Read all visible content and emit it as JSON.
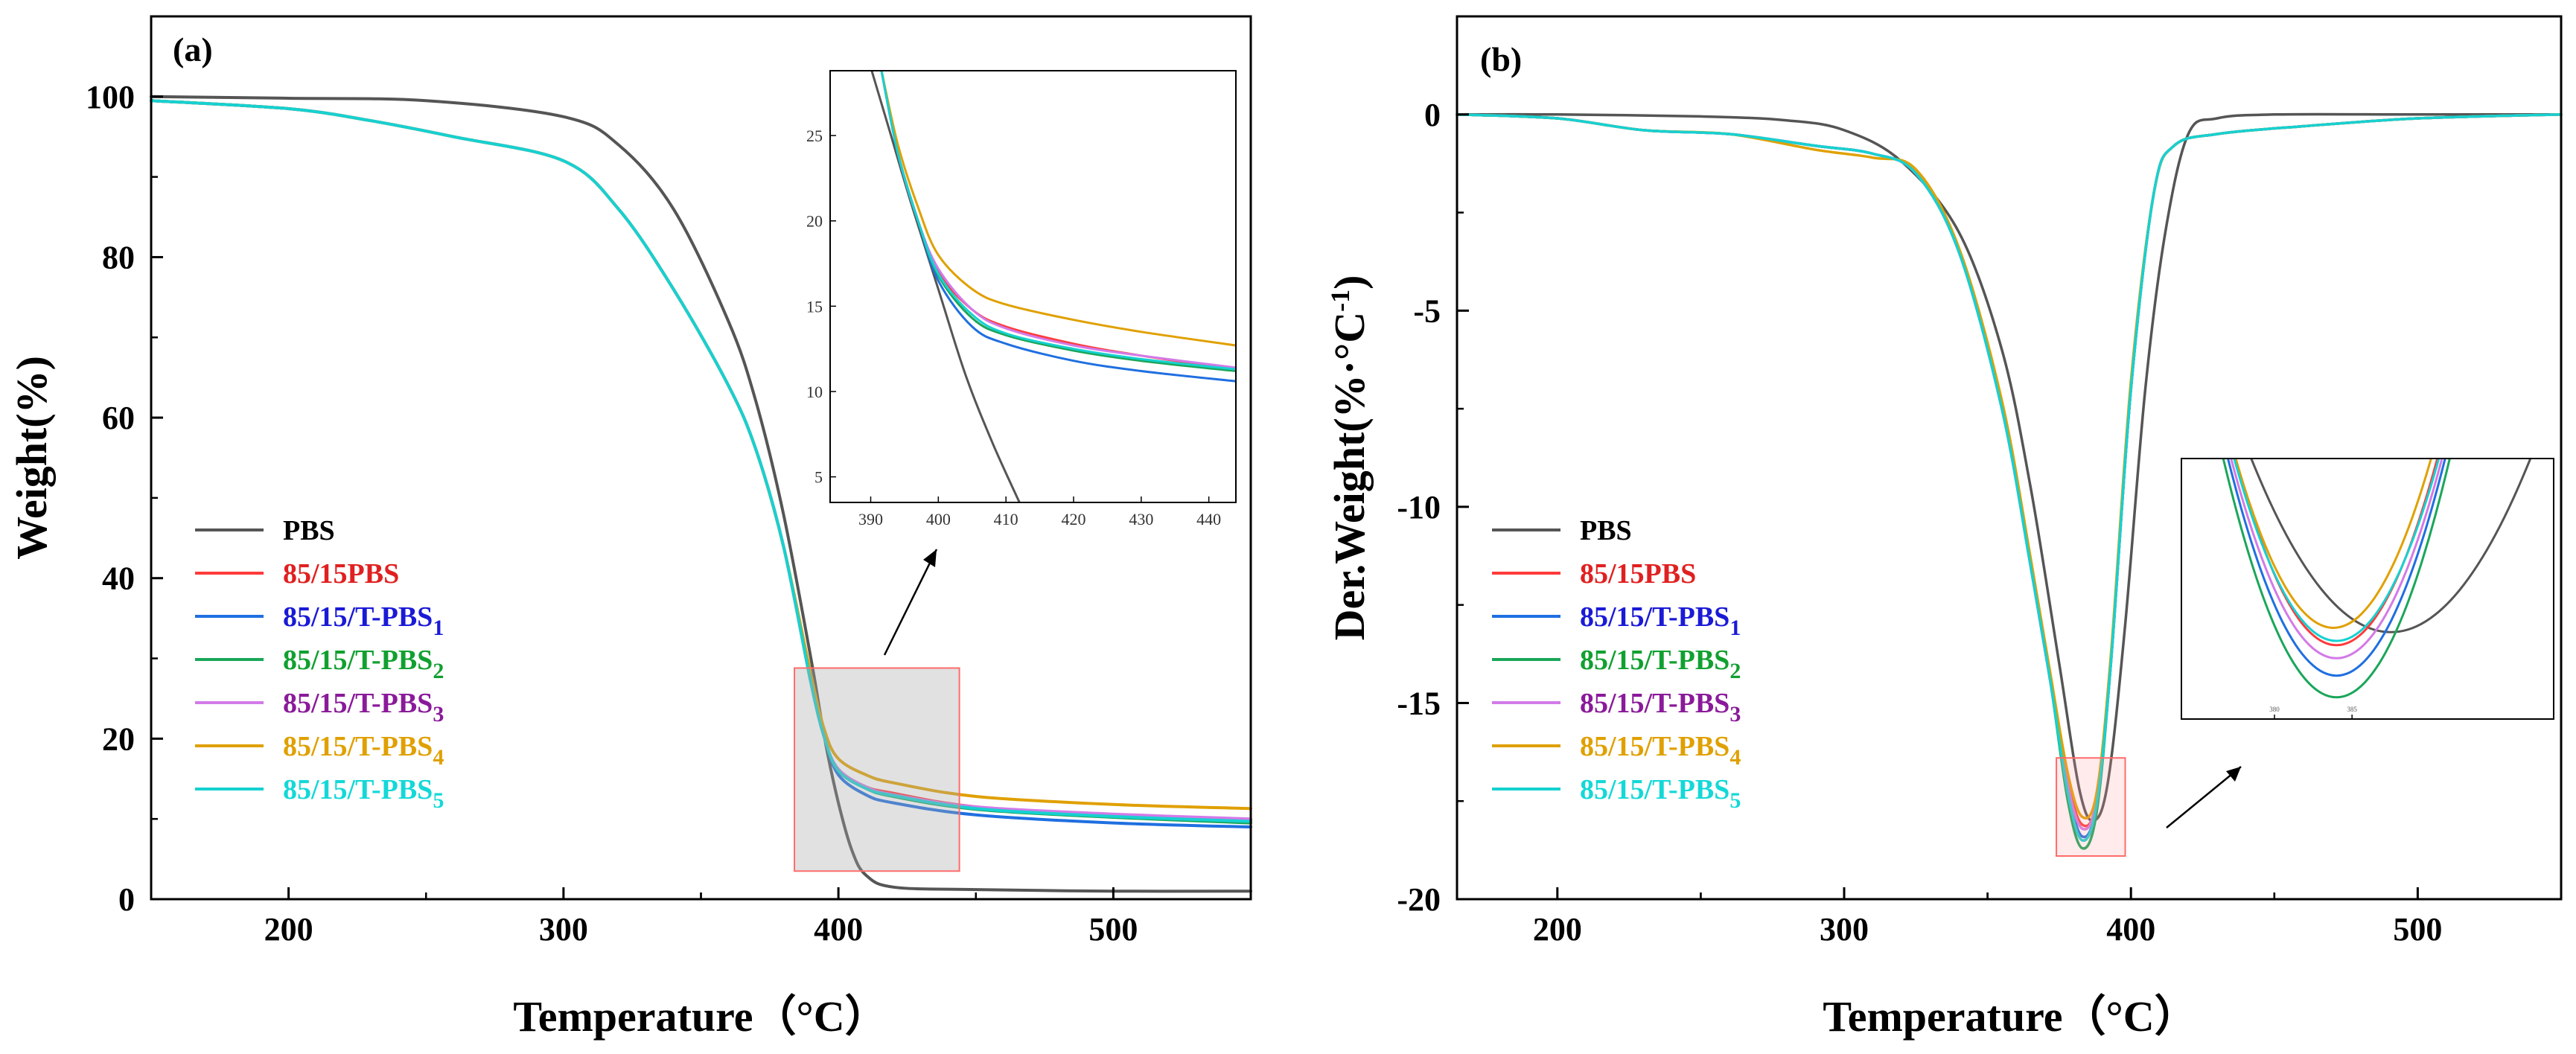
{
  "chart_data": [
    {
      "type": "line",
      "panel": "(a)",
      "xlabel": "Temperature（°C）",
      "ylabel": "Weight(%)",
      "xlim": [
        150,
        550
      ],
      "ylim": [
        0,
        110
      ],
      "x_ticks": [
        "200",
        "300",
        "400",
        "500"
      ],
      "y_ticks": [
        "0",
        "20",
        "40",
        "60",
        "80",
        "100"
      ],
      "grid": false,
      "legend_position": "lower-left",
      "legend": [
        "PBS",
        "85/15PBS",
        "85/15/T-PBS",
        "85/15/T-PBS",
        "85/15/T-PBS",
        "85/15/T-PBS",
        "85/15/T-PBS"
      ],
      "legend_subscripts": [
        "",
        "",
        "1",
        "2",
        "3",
        "4",
        "5"
      ],
      "legend_colors": [
        "#555555",
        "#ff3b3b",
        "#1f6fe0",
        "#1aa65a",
        "#d37ae8",
        "#e0a000",
        "#16d1d1"
      ],
      "legend_text_colors": [
        "#000000",
        "#e02020",
        "#1a1ad6",
        "#11a030",
        "#8a1a9a",
        "#e0a000",
        "#14d8d8"
      ],
      "series": [
        {
          "name": "PBS",
          "x": [
            150,
            200,
            250,
            300,
            320,
            340,
            360,
            370,
            380,
            390,
            395,
            400,
            405,
            410,
            420,
            450,
            500,
            550
          ],
          "y": [
            100,
            99.8,
            99.5,
            97.5,
            94,
            86,
            72,
            62,
            48,
            30,
            20,
            12,
            6,
            3,
            1.5,
            1.2,
            1,
            1
          ]
        },
        {
          "name": "85/15PBS",
          "x": [
            150,
            200,
            230,
            260,
            300,
            320,
            340,
            360,
            370,
            380,
            390,
            395,
            400,
            410,
            420,
            450,
            500,
            550
          ],
          "y": [
            99.5,
            98.5,
            97,
            95,
            92,
            86,
            76,
            64,
            56,
            44,
            27,
            20,
            16,
            14,
            13.2,
            11.5,
            10.5,
            9.8
          ]
        },
        {
          "name": "85/15/T-PBS1",
          "x": [
            150,
            200,
            230,
            260,
            300,
            320,
            340,
            360,
            370,
            380,
            390,
            395,
            400,
            410,
            420,
            450,
            500,
            550
          ],
          "y": [
            99.5,
            98.5,
            97,
            95,
            92,
            86,
            76,
            64,
            56,
            44,
            27,
            20,
            15.5,
            13,
            12,
            10.5,
            9.5,
            9
          ]
        },
        {
          "name": "85/15/T-PBS2",
          "x": [
            150,
            200,
            230,
            260,
            300,
            320,
            340,
            360,
            370,
            380,
            390,
            395,
            400,
            410,
            420,
            450,
            500,
            550
          ],
          "y": [
            99.5,
            98.5,
            97,
            95,
            92,
            86,
            76,
            64,
            56,
            44,
            27,
            20,
            16,
            13.8,
            12.8,
            11.2,
            10.2,
            9.5
          ]
        },
        {
          "name": "85/15/T-PBS3",
          "x": [
            150,
            200,
            230,
            260,
            300,
            320,
            340,
            360,
            370,
            380,
            390,
            395,
            400,
            410,
            420,
            450,
            500,
            550
          ],
          "y": [
            99.5,
            98.5,
            97,
            95,
            92,
            86,
            76,
            64,
            56,
            44,
            27,
            20,
            16.2,
            14,
            13,
            11.5,
            10.6,
            10
          ]
        },
        {
          "name": "85/15/T-PBS4",
          "x": [
            150,
            200,
            230,
            260,
            300,
            320,
            340,
            360,
            370,
            380,
            390,
            395,
            400,
            410,
            420,
            450,
            500,
            550
          ],
          "y": [
            99.5,
            98.5,
            97,
            95,
            92,
            86,
            76,
            64,
            56,
            44,
            28,
            21,
            17.5,
            15.5,
            14.5,
            12.8,
            11.8,
            11.3
          ]
        },
        {
          "name": "85/15/T-PBS5",
          "x": [
            150,
            200,
            230,
            260,
            300,
            320,
            340,
            360,
            370,
            380,
            390,
            395,
            400,
            410,
            420,
            450,
            500,
            550
          ],
          "y": [
            99.5,
            98.5,
            97,
            95,
            92,
            86,
            76,
            64,
            56,
            44,
            27,
            20,
            16,
            13.8,
            12.9,
            11.3,
            10.3,
            9.7
          ]
        }
      ],
      "highlight_box": {
        "x_range": [
          384,
          444
        ],
        "y_range": [
          3.5,
          28.8
        ]
      },
      "inset": {
        "xlim": [
          384,
          444
        ],
        "ylim": [
          3.5,
          28.8
        ],
        "x_ticks": [
          "390",
          "400",
          "410",
          "420",
          "430",
          "440"
        ],
        "y_ticks": [
          "5",
          "10",
          "15",
          "20",
          "25"
        ],
        "series": [
          {
            "name": "PBS",
            "x": [
              390,
              393,
              396,
              400,
              404,
              408,
              412
            ],
            "y": [
              29,
              25,
              21,
              16,
              11,
              7,
              3.5
            ]
          },
          {
            "name": "85/15PBS",
            "x": [
              391.5,
              394,
              397,
              400,
              405,
              410,
              420,
              430,
              444
            ],
            "y": [
              29,
              24,
              20,
              17,
              14.8,
              13.8,
              12.8,
              12.1,
              11.3
            ]
          },
          {
            "name": "85/15/T-PBS1",
            "x": [
              391.5,
              394,
              397,
              400,
              405,
              410,
              420,
              430,
              444
            ],
            "y": [
              29,
              24,
              20,
              16.5,
              13.8,
              12.8,
              11.8,
              11.2,
              10.6
            ]
          },
          {
            "name": "85/15/T-PBS2",
            "x": [
              391.5,
              394,
              397,
              400,
              405,
              410,
              420,
              430,
              444
            ],
            "y": [
              29,
              24,
              20,
              16.8,
              14.3,
              13.3,
              12.4,
              11.8,
              11.2
            ]
          },
          {
            "name": "85/15/T-PBS3",
            "x": [
              391.5,
              394,
              397,
              400,
              405,
              410,
              420,
              430,
              444
            ],
            "y": [
              29,
              24,
              20,
              17.2,
              14.8,
              13.7,
              12.7,
              12.1,
              11.4
            ]
          },
          {
            "name": "85/15/T-PBS4",
            "x": [
              391.5,
              394,
              397,
              400,
              405,
              410,
              420,
              430,
              444
            ],
            "y": [
              29,
              24.5,
              20.8,
              18,
              16,
              15.1,
              14.2,
              13.5,
              12.7
            ]
          },
          {
            "name": "85/15/T-PBS5",
            "x": [
              391.5,
              394,
              397,
              400,
              405,
              410,
              420,
              430,
              444
            ],
            "y": [
              29,
              24,
              20,
              16.9,
              14.5,
              13.4,
              12.5,
              11.9,
              11.3
            ]
          }
        ]
      }
    },
    {
      "type": "line",
      "panel": "(b)",
      "xlabel": "Temperature（°C）",
      "ylabel": "Der.Weight(%·°C",
      "ylabel_superscript": "-1",
      "ylabel_close": ")",
      "xlim": [
        165,
        550
      ],
      "ylim": [
        -20,
        2.5
      ],
      "x_ticks": [
        "200",
        "300",
        "400",
        "500"
      ],
      "y_ticks": [
        "0",
        "-5",
        "-10",
        "-15",
        "-20"
      ],
      "grid": false,
      "legend_position": "lower-left",
      "legend": [
        "PBS",
        "85/15PBS",
        "85/15/T-PBS",
        "85/15/T-PBS",
        "85/15/T-PBS",
        "85/15/T-PBS",
        "85/15/T-PBS"
      ],
      "legend_subscripts": [
        "",
        "",
        "1",
        "2",
        "3",
        "4",
        "5"
      ],
      "legend_colors": [
        "#555555",
        "#ff3b3b",
        "#1f6fe0",
        "#1aa65a",
        "#d37ae8",
        "#e0a000",
        "#16d1d1"
      ],
      "legend_text_colors": [
        "#000000",
        "#e02020",
        "#1a1ad6",
        "#11a030",
        "#8a1a9a",
        "#e0a000",
        "#14d8d8"
      ],
      "series": [
        {
          "name": "PBS",
          "x": [
            165,
            200,
            250,
            280,
            300,
            320,
            340,
            355,
            365,
            375,
            382,
            387,
            392,
            398,
            405,
            412,
            420,
            430,
            450,
            500,
            550
          ],
          "y": [
            0,
            0,
            -0.05,
            -0.15,
            -0.4,
            -1.2,
            -3,
            -6,
            -9.5,
            -14,
            -17.2,
            -18,
            -17,
            -13,
            -7,
            -3,
            -0.5,
            -0.1,
            0,
            0,
            0
          ]
        },
        {
          "name": "85/15PBS",
          "x": [
            165,
            200,
            230,
            260,
            290,
            310,
            325,
            340,
            355,
            365,
            372,
            378,
            383,
            388,
            393,
            400,
            408,
            415,
            430,
            460,
            500,
            550
          ],
          "y": [
            0,
            -0.1,
            -0.4,
            -0.5,
            -0.8,
            -1.0,
            -1.5,
            -3.5,
            -7.5,
            -11.5,
            -14.5,
            -17,
            -18.1,
            -17.5,
            -14,
            -7,
            -2,
            -0.8,
            -0.5,
            -0.3,
            -0.1,
            0
          ]
        },
        {
          "name": "85/15/T-PBS1",
          "x": [
            165,
            200,
            230,
            260,
            290,
            310,
            325,
            340,
            355,
            365,
            372,
            378,
            383,
            388,
            393,
            400,
            408,
            415,
            430,
            460,
            500,
            550
          ],
          "y": [
            0,
            -0.1,
            -0.4,
            -0.5,
            -0.8,
            -1.0,
            -1.5,
            -3.5,
            -7.5,
            -11.5,
            -14.5,
            -17.2,
            -18.4,
            -17.6,
            -14,
            -7,
            -2,
            -0.8,
            -0.5,
            -0.3,
            -0.1,
            0
          ]
        },
        {
          "name": "85/15/T-PBS2",
          "x": [
            165,
            200,
            230,
            260,
            290,
            310,
            325,
            340,
            355,
            365,
            372,
            378,
            383,
            388,
            393,
            400,
            408,
            415,
            430,
            460,
            500,
            550
          ],
          "y": [
            0,
            -0.1,
            -0.4,
            -0.5,
            -0.8,
            -1.0,
            -1.5,
            -3.5,
            -7.5,
            -11.5,
            -14.5,
            -17.5,
            -18.7,
            -17.8,
            -14,
            -7,
            -2,
            -0.8,
            -0.5,
            -0.3,
            -0.1,
            0
          ]
        },
        {
          "name": "85/15/T-PBS3",
          "x": [
            165,
            200,
            230,
            260,
            290,
            310,
            325,
            340,
            355,
            365,
            372,
            378,
            383,
            388,
            393,
            400,
            408,
            415,
            430,
            460,
            500,
            550
          ],
          "y": [
            0,
            -0.1,
            -0.4,
            -0.5,
            -0.8,
            -1.0,
            -1.5,
            -3.5,
            -7.5,
            -11.5,
            -14.5,
            -17.1,
            -18.2,
            -17.5,
            -14,
            -7,
            -2,
            -0.8,
            -0.5,
            -0.3,
            -0.1,
            0
          ]
        },
        {
          "name": "85/15/T-PBS4",
          "x": [
            165,
            200,
            230,
            260,
            290,
            310,
            325,
            340,
            355,
            365,
            372,
            378,
            383,
            388,
            393,
            400,
            408,
            415,
            430,
            460,
            500,
            550
          ],
          "y": [
            0,
            -0.1,
            -0.4,
            -0.5,
            -0.9,
            -1.1,
            -1.4,
            -3.4,
            -7.3,
            -11.3,
            -14.3,
            -16.8,
            -17.9,
            -17.3,
            -13.8,
            -6.8,
            -2,
            -0.8,
            -0.5,
            -0.3,
            -0.1,
            0
          ]
        },
        {
          "name": "85/15/T-PBS5",
          "x": [
            165,
            200,
            230,
            260,
            290,
            310,
            325,
            340,
            355,
            365,
            372,
            378,
            383,
            388,
            393,
            400,
            408,
            415,
            430,
            460,
            500,
            550
          ],
          "y": [
            0,
            -0.1,
            -0.4,
            -0.5,
            -0.8,
            -1.0,
            -1.5,
            -3.5,
            -7.5,
            -11.5,
            -14.5,
            -17.3,
            -18.5,
            -17.6,
            -14,
            -7,
            -2,
            -0.8,
            -0.5,
            -0.3,
            -0.1,
            0
          ]
        }
      ],
      "highlight_box": {
        "x_range": [
          374,
          398
        ],
        "y_range": [
          -18.9,
          -16.4
        ]
      },
      "inset": {
        "xlim": [
          374,
          398
        ],
        "ylim": [
          -19.0,
          -16.0
        ],
        "x_ticks": [
          "380",
          "385"
        ],
        "minima": [
          {
            "name": "PBS",
            "x": 387.5,
            "y": -18.0,
            "half_width": 9
          },
          {
            "name": "85/15PBS",
            "x": 384,
            "y": -18.15,
            "half_width": 6.5
          },
          {
            "name": "85/15/T-PBS1",
            "x": 384,
            "y": -18.5,
            "half_width": 7
          },
          {
            "name": "85/15/T-PBS2",
            "x": 384,
            "y": -18.75,
            "half_width": 7.3
          },
          {
            "name": "85/15/T-PBS3",
            "x": 384,
            "y": -18.3,
            "half_width": 6.8
          },
          {
            "name": "85/15/T-PBS4",
            "x": 383.8,
            "y": -17.95,
            "half_width": 6.3
          },
          {
            "name": "85/15/T-PBS5",
            "x": 384,
            "y": -18.1,
            "half_width": 6.6
          }
        ]
      }
    }
  ]
}
